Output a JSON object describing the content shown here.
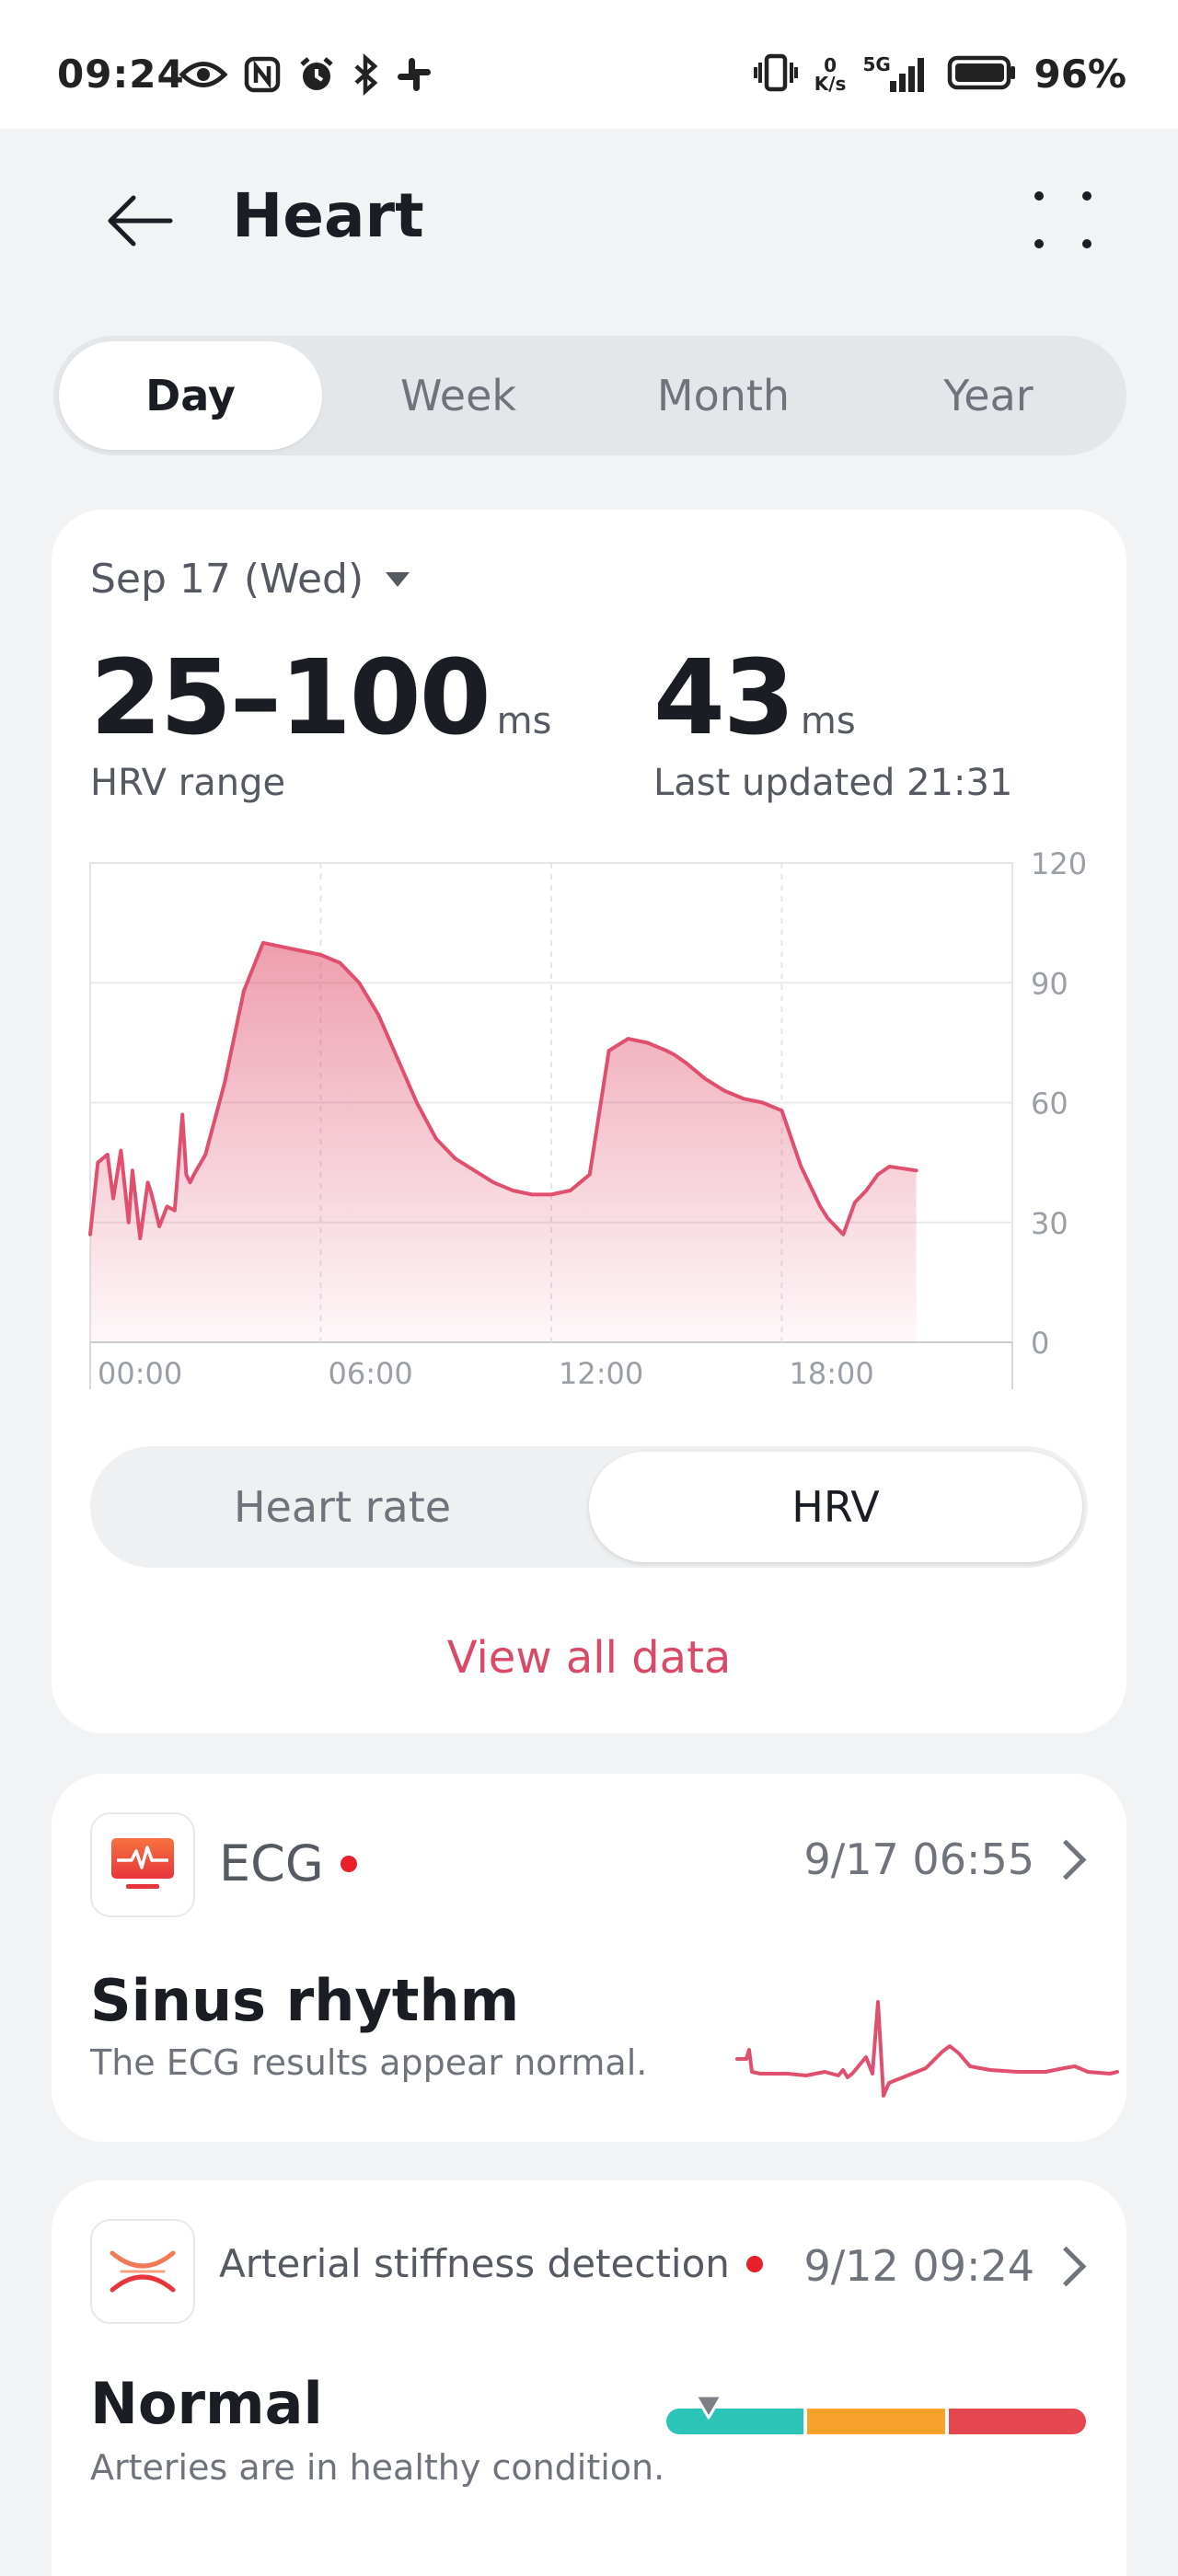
{
  "status_bar": {
    "time": "09:24",
    "left_icons": [
      "eye-icon",
      "nfc-icon",
      "alarm-icon",
      "bluetooth-icon",
      "slack-icon"
    ],
    "right_icons": [
      "vibrate-icon",
      "network-speed",
      "signal-5g-icon",
      "battery-icon"
    ],
    "net_speed_value": "0",
    "net_speed_unit": "K/s",
    "network_type": "5G",
    "battery_percent": "96%"
  },
  "header": {
    "title": "Heart",
    "back_icon": "arrow-left-icon",
    "more_icon": "more-dots-icon"
  },
  "period_tabs": {
    "items": [
      "Day",
      "Week",
      "Month",
      "Year"
    ],
    "active": "Day"
  },
  "hrv_card": {
    "date_label": "Sep 17 (Wed)",
    "range": {
      "value": "25–100",
      "unit": "ms",
      "caption": "HRV range"
    },
    "latest": {
      "value": "43",
      "unit": "ms",
      "caption": "Last updated 21:31"
    },
    "toggle": {
      "options": [
        "Heart rate",
        "HRV"
      ],
      "active": "HRV"
    },
    "view_all_label": "View all data"
  },
  "chart_data": {
    "type": "area",
    "title": "",
    "xlabel": "",
    "ylabel": "",
    "x_ticks": [
      "00:00",
      "06:00",
      "12:00",
      "18:00"
    ],
    "y_ticks": [
      0,
      30,
      60,
      90,
      120
    ],
    "xlim": [
      0,
      24
    ],
    "ylim": [
      0,
      120
    ],
    "grid": true,
    "series": [
      {
        "color": "#e0506e",
        "x": [
          0.0,
          0.2,
          0.45,
          0.6,
          0.8,
          1.0,
          1.1,
          1.3,
          1.5,
          1.6,
          1.8,
          2.0,
          2.2,
          2.4,
          2.5,
          2.6,
          2.7,
          3.0,
          3.5,
          4.0,
          4.5,
          5.0,
          5.5,
          6.0,
          6.5,
          7.0,
          7.5,
          8.0,
          8.5,
          9.0,
          9.5,
          10.0,
          10.5,
          11.0,
          11.5,
          12.0,
          12.5,
          13.0,
          13.5,
          14.0,
          14.5,
          15.0,
          15.2,
          15.5,
          16.0,
          16.5,
          17.0,
          17.5,
          18.0,
          18.5,
          19.0,
          19.2,
          19.4,
          19.6,
          19.9,
          20.2,
          20.5,
          20.8,
          21.5
        ],
        "values": [
          27,
          45,
          47,
          36,
          48,
          30,
          43,
          26,
          40,
          37,
          29,
          34,
          33,
          57,
          42,
          40,
          42,
          47,
          65,
          88,
          100,
          99,
          98,
          97,
          95,
          90,
          82,
          71,
          60,
          51,
          46,
          43,
          40,
          38,
          37,
          37,
          38,
          42,
          73,
          76,
          75,
          73,
          72,
          70,
          66,
          63,
          61,
          60,
          58,
          44,
          34,
          31,
          29,
          27,
          35,
          38,
          42,
          44,
          43
        ]
      }
    ]
  },
  "ecg_card": {
    "icon": "ecg-monitor-icon",
    "title": "ECG",
    "date": "9/17 06:55",
    "result": "Sinus rhythm",
    "description": "The ECG results appear normal.",
    "trace_color": "#e0506e"
  },
  "arterial_card": {
    "icon": "arterial-stiffness-icon",
    "title": "Arterial stiffness detection",
    "date": "9/12 09:24",
    "result": "Normal",
    "description": "Arteries are in healthy condition.",
    "scale_colors": [
      "#2bc4b6",
      "#f7a32b",
      "#e4474f"
    ],
    "indicator_fraction": 0.1
  }
}
